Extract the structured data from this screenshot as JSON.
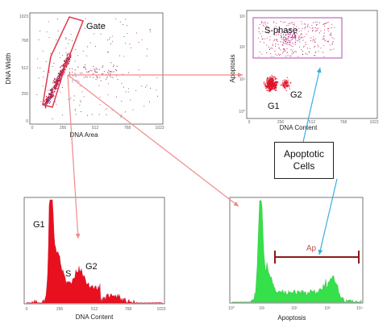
{
  "colors": {
    "red": "#e23a4a",
    "red_dark": "#c41230",
    "pink_arrow": "#f08a8a",
    "green": "#33dd44",
    "cyan_arrow": "#3aaedc",
    "gate_box": "#c068c0",
    "ap_bar": "#8b1a1a"
  },
  "panel_dot_dna": {
    "title": "Gate",
    "xlabel": "DNA Area",
    "ylabel": "DNA Width",
    "xticks": [
      "0",
      "256",
      "512",
      "768",
      "1023"
    ],
    "yticks": [
      "1023",
      "768",
      "512",
      "256",
      "0"
    ]
  },
  "panel_dot_apop": {
    "xlabel": "DNA Content",
    "ylabel": "Apoptosis",
    "region_label": "S-phase",
    "g1_label": "G1",
    "g2_label": "G2",
    "xticks": [
      "0",
      "256",
      "512",
      "768",
      "1023"
    ],
    "yticks": [
      "10³",
      "10²",
      "10¹",
      "10⁰"
    ]
  },
  "panel_hist_dna": {
    "xlabel": "DNA Content",
    "g1_label": "G1",
    "s_label": "S",
    "g2_label": "G2",
    "xticks": [
      "0",
      "256",
      "512",
      "768",
      "1023"
    ]
  },
  "panel_hist_apop": {
    "xlabel": "Apoptosis",
    "marker_label": "Ap",
    "xticks": [
      "10⁰",
      "10¹",
      "10²",
      "10³",
      "10⁴"
    ]
  },
  "callout": {
    "line1": "Apoptotic",
    "line2": "Cells"
  }
}
